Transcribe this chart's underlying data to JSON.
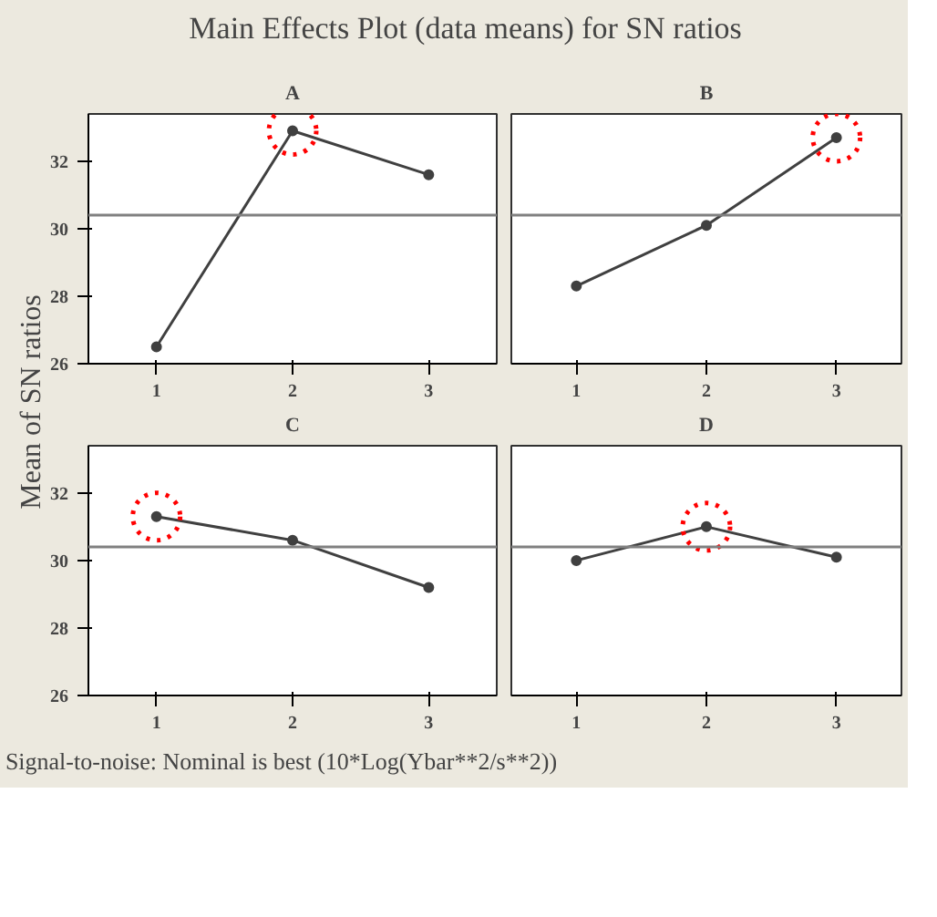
{
  "chart_data": [
    {
      "type": "line",
      "title": "Main Effects Plot (data means) for SN ratios",
      "ylabel": "Mean of SN ratios",
      "xlabel": "A",
      "annotations": [
        "Signal-to-noise: Nominal is best (10*Log(Ybar**2/s**2))"
      ],
      "categories": [
        "1",
        "2",
        "3"
      ],
      "ylim": [
        26,
        33.4
      ],
      "yticks": [
        26,
        28,
        30,
        32
      ],
      "grid": false,
      "marker": "circle",
      "ref_lines": [
        {
          "axis": "y",
          "value": 30.4,
          "color": "#808080"
        }
      ],
      "series": [
        {
          "color": "#404040",
          "values": [
            26.5,
            32.9,
            31.6
          ]
        },
        {
          "type": "scatter",
          "color": "#ff0000",
          "marker": "circle",
          "line_style": "dotted",
          "values": [
            null,
            32.9,
            null
          ]
        }
      ]
    },
    {
      "type": "line",
      "xlabel": "B",
      "categories": [
        "1",
        "2",
        "3"
      ],
      "ylim": [
        26,
        33.4
      ],
      "yticks": [
        26,
        28,
        30,
        32
      ],
      "grid": false,
      "marker": "circle",
      "tick_labels": "x",
      "ref_lines": [
        {
          "axis": "y",
          "value": 30.4,
          "color": "#808080"
        }
      ],
      "series": [
        {
          "color": "#404040",
          "values": [
            28.3,
            30.1,
            32.7
          ]
        },
        {
          "type": "scatter",
          "color": "#ff0000",
          "marker": "circle",
          "line_style": "dotted",
          "values": [
            null,
            null,
            32.7
          ]
        }
      ]
    },
    {
      "type": "line",
      "xlabel": "C",
      "categories": [
        "1",
        "2",
        "3"
      ],
      "ylim": [
        26,
        33.4
      ],
      "yticks": [
        26,
        28,
        30,
        32
      ],
      "grid": false,
      "marker": "circle",
      "ref_lines": [
        {
          "axis": "y",
          "value": 30.4,
          "color": "#808080"
        }
      ],
      "series": [
        {
          "color": "#404040",
          "values": [
            31.3,
            30.6,
            29.2
          ]
        },
        {
          "type": "scatter",
          "color": "#ff0000",
          "marker": "circle",
          "line_style": "dotted",
          "values": [
            31.3,
            null,
            null
          ]
        }
      ]
    },
    {
      "type": "line",
      "xlabel": "D",
      "categories": [
        "1",
        "2",
        "3"
      ],
      "ylim": [
        26,
        33.4
      ],
      "yticks": [
        26,
        28,
        30,
        32
      ],
      "grid": false,
      "marker": "circle",
      "tick_labels": "x",
      "ref_lines": [
        {
          "axis": "y",
          "value": 30.4,
          "color": "#808080"
        }
      ],
      "series": [
        {
          "color": "#404040",
          "values": [
            30.0,
            31.0,
            30.1
          ]
        },
        {
          "type": "scatter",
          "color": "#ff0000",
          "marker": "circle",
          "line_style": "dotted",
          "values": [
            null,
            31.0,
            null
          ]
        }
      ]
    }
  ]
}
